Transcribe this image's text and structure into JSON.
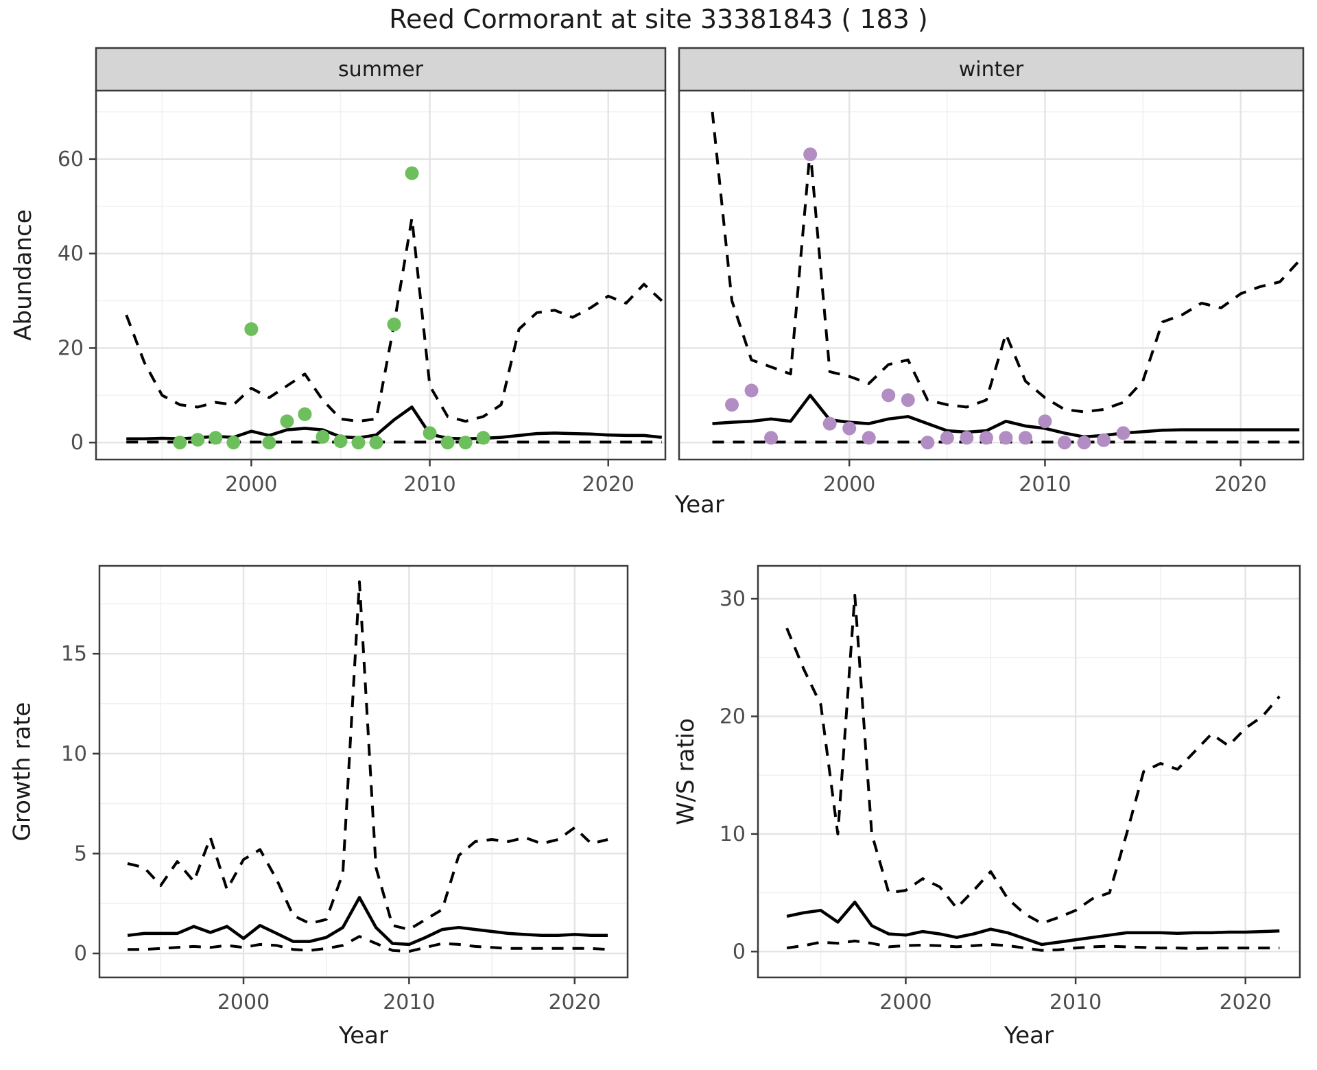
{
  "title": "Reed Cormorant at site 33381843 ( 183 )",
  "colors": {
    "summer_point": "#6cbf5c",
    "winter_point": "#b28dc3",
    "line": "#000000",
    "border": "#3b3b3b",
    "strip_bg": "#d5d5d5",
    "grid_major": "#e4e4e4",
    "grid_minor": "#f1f1f1",
    "tick_text": "#4d4d4d"
  },
  "chart_data": [
    {
      "id": "abundance_summer",
      "type": "line",
      "facet_label": "summer",
      "ylabel": "Abundance",
      "xlabel": "Year",
      "legend": "none",
      "grid": "on",
      "xlim": [
        1991.3,
        2023.2
      ],
      "ylim": [
        -3.6,
        74.5
      ],
      "xticks": [
        2000,
        2010,
        2020
      ],
      "x_minor": [
        1995,
        2005,
        2015
      ],
      "yticks": [
        0,
        20,
        40,
        60
      ],
      "y_minor": [
        10,
        30,
        50,
        70
      ],
      "x": [
        1993,
        1994,
        1995,
        1996,
        1997,
        1998,
        1999,
        2000,
        2001,
        2002,
        2003,
        2004,
        2005,
        2006,
        2007,
        2008,
        2009,
        2010,
        2011,
        2012,
        2013,
        2014,
        2015,
        2016,
        2017,
        2018,
        2019,
        2020,
        2021,
        2022,
        2023
      ],
      "series": [
        {
          "name": "median",
          "style": "solid",
          "values": [
            0.8,
            0.8,
            0.9,
            0.8,
            1.0,
            1.3,
            1.1,
            2.4,
            1.5,
            2.7,
            3.0,
            2.7,
            1.2,
            1.0,
            1.6,
            4.8,
            7.5,
            1.8,
            0.9,
            0.8,
            0.9,
            1.1,
            1.5,
            1.9,
            2.0,
            1.9,
            1.8,
            1.6,
            1.5,
            1.5,
            1.1
          ]
        },
        {
          "name": "upper_ci",
          "style": "dashed",
          "values": [
            27,
            17,
            10,
            8,
            7.5,
            8.5,
            8,
            11.5,
            9.5,
            12,
            14.5,
            9,
            5,
            4.5,
            5,
            25,
            47.5,
            12,
            5.5,
            4.5,
            5.5,
            8,
            24,
            27.5,
            28,
            26.5,
            28.5,
            31,
            29.5,
            33.5,
            30
          ]
        },
        {
          "name": "lower_ci",
          "style": "dashed",
          "values": [
            0.1,
            0.1,
            0.1,
            0.1,
            0.1,
            0.1,
            0.1,
            0.1,
            0.1,
            0.1,
            0.1,
            0.1,
            0.1,
            0.1,
            0.1,
            0.1,
            0.1,
            0.1,
            0.1,
            0.1,
            0.1,
            0.1,
            0.1,
            0.1,
            0.1,
            0.1,
            0.1,
            0.1,
            0.1,
            0.1,
            0.1
          ]
        }
      ],
      "points": {
        "name": "observed_summer_counts",
        "color_key": "summer_point",
        "data": [
          [
            1996,
            0
          ],
          [
            1997,
            0.6
          ],
          [
            1998,
            1
          ],
          [
            1999,
            0
          ],
          [
            2000,
            24
          ],
          [
            2001,
            0
          ],
          [
            2002,
            4.5
          ],
          [
            2003,
            6
          ],
          [
            2004,
            1.2
          ],
          [
            2005,
            0.3
          ],
          [
            2006,
            0
          ],
          [
            2007,
            0
          ],
          [
            2008,
            25
          ],
          [
            2009,
            57
          ],
          [
            2010,
            2
          ],
          [
            2011,
            0
          ],
          [
            2012,
            0
          ],
          [
            2013,
            1
          ]
        ]
      }
    },
    {
      "id": "abundance_winter",
      "type": "line",
      "facet_label": "winter",
      "ylabel": "Abundance",
      "xlabel": "Year",
      "legend": "none",
      "grid": "on",
      "xlim": [
        1991.3,
        2023.2
      ],
      "ylim": [
        -3.6,
        74.5
      ],
      "xticks": [
        2000,
        2010,
        2020
      ],
      "x_minor": [
        1995,
        2005,
        2015
      ],
      "yticks": [
        0,
        20,
        40,
        60
      ],
      "y_minor": [
        10,
        30,
        50,
        70
      ],
      "x": [
        1993,
        1994,
        1995,
        1996,
        1997,
        1998,
        1999,
        2000,
        2001,
        2002,
        2003,
        2004,
        2005,
        2006,
        2007,
        2008,
        2009,
        2010,
        2011,
        2012,
        2013,
        2014,
        2015,
        2016,
        2017,
        2018,
        2019,
        2020,
        2021,
        2022,
        2023
      ],
      "series": [
        {
          "name": "median",
          "style": "solid",
          "values": [
            4.0,
            4.3,
            4.5,
            5.0,
            4.5,
            10.0,
            4.8,
            4.3,
            4.0,
            5.0,
            5.5,
            4.0,
            2.5,
            2.2,
            2.5,
            4.5,
            3.5,
            3.0,
            2.0,
            1.2,
            1.5,
            2.0,
            2.3,
            2.6,
            2.7,
            2.7,
            2.7,
            2.7,
            2.7,
            2.7,
            2.7
          ]
        },
        {
          "name": "upper_ci",
          "style": "dashed",
          "values": [
            70,
            30,
            17.5,
            16,
            14.5,
            62,
            15,
            14,
            12.5,
            16.5,
            17.5,
            9,
            8,
            7.5,
            9,
            23,
            13,
            9.5,
            7,
            6.5,
            7,
            8.5,
            13,
            25.5,
            27,
            29.5,
            28.5,
            31.5,
            33,
            34,
            38.5
          ]
        },
        {
          "name": "lower_ci",
          "style": "dashed",
          "values": [
            0.1,
            0.1,
            0.1,
            0.1,
            0.1,
            0.1,
            0.1,
            0.1,
            0.1,
            0.1,
            0.1,
            0.1,
            0.1,
            0.1,
            0.1,
            0.1,
            0.1,
            0.1,
            0.1,
            0.1,
            0.1,
            0.1,
            0.1,
            0.1,
            0.1,
            0.1,
            0.1,
            0.1,
            0.1,
            0.1,
            0.1
          ]
        }
      ],
      "points": {
        "name": "observed_winter_counts",
        "color_key": "winter_point",
        "data": [
          [
            1994,
            8
          ],
          [
            1995,
            11
          ],
          [
            1996,
            1
          ],
          [
            1998,
            61
          ],
          [
            1999,
            4
          ],
          [
            2000,
            3
          ],
          [
            2001,
            1
          ],
          [
            2002,
            10
          ],
          [
            2003,
            9
          ],
          [
            2004,
            0
          ],
          [
            2005,
            1
          ],
          [
            2006,
            1
          ],
          [
            2007,
            1
          ],
          [
            2008,
            1
          ],
          [
            2009,
            1
          ],
          [
            2010,
            4.5
          ],
          [
            2011,
            0
          ],
          [
            2012,
            0
          ],
          [
            2013,
            0.5
          ],
          [
            2014,
            2
          ]
        ]
      }
    },
    {
      "id": "growth_rate",
      "type": "line",
      "facet_label": null,
      "ylabel": "Growth rate",
      "xlabel": "Year",
      "legend": "none",
      "grid": "on",
      "xlim": [
        1991.3,
        2023.2
      ],
      "ylim": [
        -1.2,
        19.4
      ],
      "xticks": [
        2000,
        2010,
        2020
      ],
      "x_minor": [
        1995,
        2005,
        2015
      ],
      "yticks": [
        0,
        5,
        10,
        15
      ],
      "y_minor": [
        2.5,
        7.5,
        12.5,
        17.5
      ],
      "x": [
        1993,
        1994,
        1995,
        1996,
        1997,
        1998,
        1999,
        2000,
        2001,
        2002,
        2003,
        2004,
        2005,
        2006,
        2007,
        2008,
        2009,
        2010,
        2011,
        2012,
        2013,
        2014,
        2015,
        2016,
        2017,
        2018,
        2019,
        2020,
        2021,
        2022
      ],
      "series": [
        {
          "name": "median",
          "style": "solid",
          "values": [
            0.9,
            1.0,
            1.0,
            1.0,
            1.35,
            1.05,
            1.35,
            0.75,
            1.4,
            1.0,
            0.6,
            0.6,
            0.8,
            1.3,
            2.8,
            1.3,
            0.5,
            0.45,
            0.8,
            1.2,
            1.3,
            1.2,
            1.1,
            1.0,
            0.95,
            0.9,
            0.9,
            0.95,
            0.9,
            0.9
          ]
        },
        {
          "name": "upper_ci",
          "style": "dashed",
          "values": [
            4.5,
            4.3,
            3.4,
            4.6,
            3.6,
            5.8,
            3.2,
            4.7,
            5.2,
            3.7,
            1.9,
            1.5,
            1.7,
            4.0,
            18.6,
            4.3,
            1.4,
            1.2,
            1.7,
            2.2,
            4.9,
            5.6,
            5.7,
            5.6,
            5.8,
            5.5,
            5.7,
            6.3,
            5.5,
            5.7
          ]
        },
        {
          "name": "lower_ci",
          "style": "dashed",
          "values": [
            0.2,
            0.2,
            0.25,
            0.3,
            0.35,
            0.3,
            0.4,
            0.3,
            0.45,
            0.4,
            0.2,
            0.15,
            0.25,
            0.4,
            0.85,
            0.5,
            0.15,
            0.1,
            0.3,
            0.5,
            0.45,
            0.35,
            0.3,
            0.25,
            0.25,
            0.25,
            0.25,
            0.25,
            0.25,
            0.2
          ]
        }
      ],
      "points": null
    },
    {
      "id": "ws_ratio",
      "type": "line",
      "facet_label": null,
      "ylabel": "W/S ratio",
      "xlabel": "Year",
      "legend": "none",
      "grid": "on",
      "xlim": [
        1991.3,
        2023.2
      ],
      "ylim": [
        -2.2,
        32.8
      ],
      "xticks": [
        2000,
        2010,
        2020
      ],
      "x_minor": [
        1995,
        2005,
        2015
      ],
      "yticks": [
        0,
        10,
        20,
        30
      ],
      "y_minor": [
        5,
        15,
        25
      ],
      "x": [
        1993,
        1994,
        1995,
        1996,
        1997,
        1998,
        1999,
        2000,
        2001,
        2002,
        2003,
        2004,
        2005,
        2006,
        2007,
        2008,
        2009,
        2010,
        2011,
        2012,
        2013,
        2014,
        2015,
        2016,
        2017,
        2018,
        2019,
        2020,
        2021,
        2022
      ],
      "series": [
        {
          "name": "median",
          "style": "solid",
          "values": [
            3.0,
            3.3,
            3.5,
            2.5,
            4.2,
            2.2,
            1.5,
            1.4,
            1.7,
            1.5,
            1.2,
            1.5,
            1.9,
            1.6,
            1.1,
            0.6,
            0.8,
            1.0,
            1.2,
            1.4,
            1.6,
            1.6,
            1.6,
            1.55,
            1.6,
            1.6,
            1.65,
            1.65,
            1.7,
            1.75
          ]
        },
        {
          "name": "upper_ci",
          "style": "dashed",
          "values": [
            27.5,
            24.0,
            21.0,
            10.0,
            30.3,
            10.0,
            5.0,
            5.2,
            6.2,
            5.5,
            3.7,
            5.2,
            6.8,
            4.5,
            3.2,
            2.4,
            2.9,
            3.5,
            4.5,
            5.0,
            10.0,
            15.3,
            16.0,
            15.5,
            17.0,
            18.5,
            17.5,
            19.0,
            20.0,
            21.7
          ]
        },
        {
          "name": "lower_ci",
          "style": "dashed",
          "values": [
            0.3,
            0.5,
            0.8,
            0.7,
            0.9,
            0.7,
            0.4,
            0.5,
            0.55,
            0.5,
            0.4,
            0.5,
            0.6,
            0.5,
            0.3,
            0.1,
            0.15,
            0.3,
            0.4,
            0.45,
            0.4,
            0.35,
            0.3,
            0.3,
            0.25,
            0.3,
            0.3,
            0.3,
            0.3,
            0.3
          ]
        }
      ],
      "points": null
    }
  ]
}
